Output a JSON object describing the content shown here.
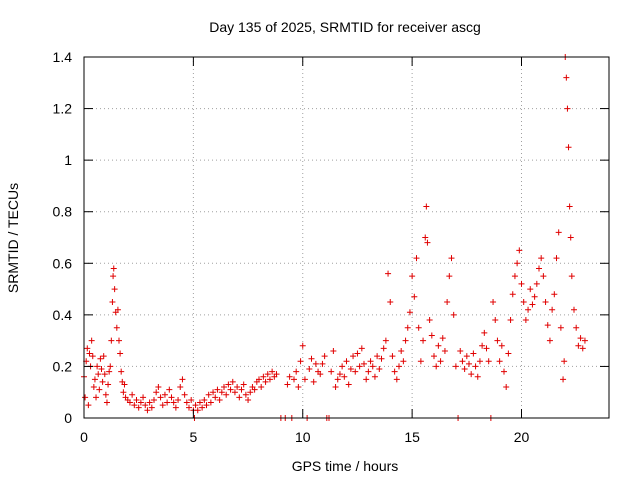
{
  "chart_data": {
    "type": "scatter",
    "title": "Day 135 of 2025, SRMTID for receiver ascg",
    "xlabel": "GPS time / hours",
    "ylabel": "SRMTID / TECUs",
    "xlim": [
      0,
      24
    ],
    "ylim": [
      0,
      1.4
    ],
    "xticks": [
      0,
      5,
      10,
      15,
      20
    ],
    "xtick_labels": [
      "0",
      "5",
      "10",
      "15",
      "20"
    ],
    "yticks": [
      0,
      0.2,
      0.4,
      0.6,
      0.8,
      1.0,
      1.2,
      1.4
    ],
    "ytick_labels": [
      "0",
      "0.2",
      "0.4",
      "0.6",
      "0.8",
      "1",
      "1.2",
      "1.4"
    ],
    "grid": true,
    "marker": "plus",
    "color": "#e00000",
    "series": [
      {
        "name": "SRMTID",
        "points": [
          [
            0.0,
            0.16
          ],
          [
            0.05,
            0.08
          ],
          [
            0.1,
            0.22
          ],
          [
            0.15,
            0.27
          ],
          [
            0.2,
            0.05
          ],
          [
            0.25,
            0.25
          ],
          [
            0.3,
            0.2
          ],
          [
            0.35,
            0.3
          ],
          [
            0.4,
            0.24
          ],
          [
            0.45,
            0.12
          ],
          [
            0.5,
            0.15
          ],
          [
            0.55,
            0.08
          ],
          [
            0.6,
            0.2
          ],
          [
            0.65,
            0.17
          ],
          [
            0.7,
            0.11
          ],
          [
            0.75,
            0.23
          ],
          [
            0.8,
            0.19
          ],
          [
            0.85,
            0.14
          ],
          [
            0.9,
            0.24
          ],
          [
            0.95,
            0.17
          ],
          [
            1.0,
            0.09
          ],
          [
            1.05,
            0.06
          ],
          [
            1.1,
            0.13
          ],
          [
            1.15,
            0.18
          ],
          [
            1.2,
            0.2
          ],
          [
            1.25,
            0.3
          ],
          [
            1.3,
            0.45
          ],
          [
            1.33,
            0.55
          ],
          [
            1.36,
            0.58
          ],
          [
            1.4,
            0.5
          ],
          [
            1.45,
            0.41
          ],
          [
            1.5,
            0.35
          ],
          [
            1.55,
            0.42
          ],
          [
            1.6,
            0.3
          ],
          [
            1.65,
            0.25
          ],
          [
            1.7,
            0.18
          ],
          [
            1.75,
            0.14
          ],
          [
            1.8,
            0.1
          ],
          [
            1.85,
            0.13
          ],
          [
            1.9,
            0.08
          ],
          [
            2.0,
            0.07
          ],
          [
            2.1,
            0.06
          ],
          [
            2.2,
            0.09
          ],
          [
            2.3,
            0.05
          ],
          [
            2.4,
            0.07
          ],
          [
            2.5,
            0.04
          ],
          [
            2.6,
            0.06
          ],
          [
            2.7,
            0.08
          ],
          [
            2.8,
            0.05
          ],
          [
            2.9,
            0.03
          ],
          [
            3.0,
            0.06
          ],
          [
            3.1,
            0.04
          ],
          [
            3.2,
            0.07
          ],
          [
            3.3,
            0.1
          ],
          [
            3.4,
            0.12
          ],
          [
            3.5,
            0.08
          ],
          [
            3.6,
            0.05
          ],
          [
            3.7,
            0.09
          ],
          [
            3.8,
            0.06
          ],
          [
            3.9,
            0.11
          ],
          [
            4.0,
            0.08
          ],
          [
            4.1,
            0.06
          ],
          [
            4.2,
            0.04
          ],
          [
            4.3,
            0.07
          ],
          [
            4.4,
            0.12
          ],
          [
            4.5,
            0.15
          ],
          [
            4.6,
            0.09
          ],
          [
            4.7,
            0.06
          ],
          [
            4.8,
            0.04
          ],
          [
            4.9,
            0.07
          ],
          [
            5.0,
            0.03
          ],
          [
            5.05,
            0.0
          ],
          [
            5.1,
            0.05
          ],
          [
            5.2,
            0.03
          ],
          [
            5.3,
            0.06
          ],
          [
            5.4,
            0.04
          ],
          [
            5.5,
            0.07
          ],
          [
            5.6,
            0.05
          ],
          [
            5.7,
            0.09
          ],
          [
            5.8,
            0.06
          ],
          [
            5.9,
            0.1
          ],
          [
            6.0,
            0.08
          ],
          [
            6.1,
            0.11
          ],
          [
            6.2,
            0.07
          ],
          [
            6.3,
            0.1
          ],
          [
            6.4,
            0.12
          ],
          [
            6.5,
            0.09
          ],
          [
            6.6,
            0.13
          ],
          [
            6.7,
            0.11
          ],
          [
            6.8,
            0.14
          ],
          [
            6.9,
            0.1
          ],
          [
            7.0,
            0.12
          ],
          [
            7.1,
            0.08
          ],
          [
            7.2,
            0.11
          ],
          [
            7.3,
            0.13
          ],
          [
            7.4,
            0.09
          ],
          [
            7.5,
            0.07
          ],
          [
            7.6,
            0.1
          ],
          [
            7.7,
            0.12
          ],
          [
            7.8,
            0.11
          ],
          [
            7.9,
            0.14
          ],
          [
            8.0,
            0.15
          ],
          [
            8.1,
            0.12
          ],
          [
            8.2,
            0.16
          ],
          [
            8.3,
            0.14
          ],
          [
            8.4,
            0.17
          ],
          [
            8.5,
            0.15
          ],
          [
            8.6,
            0.18
          ],
          [
            8.7,
            0.16
          ],
          [
            8.8,
            0.17
          ],
          [
            9.0,
            0.0
          ],
          [
            9.2,
            0.0
          ],
          [
            9.3,
            0.13
          ],
          [
            9.4,
            0.16
          ],
          [
            9.5,
            0.0
          ],
          [
            9.6,
            0.15
          ],
          [
            9.7,
            0.18
          ],
          [
            9.8,
            0.12
          ],
          [
            9.9,
            0.22
          ],
          [
            10.0,
            0.28
          ],
          [
            10.1,
            0.15
          ],
          [
            10.2,
            0.0
          ],
          [
            10.3,
            0.19
          ],
          [
            10.4,
            0.23
          ],
          [
            10.5,
            0.14
          ],
          [
            10.6,
            0.21
          ],
          [
            10.7,
            0.18
          ],
          [
            10.8,
            0.17
          ],
          [
            10.9,
            0.21
          ],
          [
            11.0,
            0.24
          ],
          [
            11.1,
            0.0
          ],
          [
            11.2,
            0.0
          ],
          [
            11.3,
            0.18
          ],
          [
            11.4,
            0.26
          ],
          [
            11.5,
            0.12
          ],
          [
            11.6,
            0.15
          ],
          [
            11.7,
            0.17
          ],
          [
            11.8,
            0.2
          ],
          [
            11.9,
            0.16
          ],
          [
            12.0,
            0.22
          ],
          [
            12.1,
            0.13
          ],
          [
            12.2,
            0.19
          ],
          [
            12.3,
            0.24
          ],
          [
            12.4,
            0.18
          ],
          [
            12.5,
            0.25
          ],
          [
            12.6,
            0.2
          ],
          [
            12.7,
            0.27
          ],
          [
            12.8,
            0.21
          ],
          [
            12.9,
            0.15
          ],
          [
            13.0,
            0.18
          ],
          [
            13.1,
            0.22
          ],
          [
            13.2,
            0.2
          ],
          [
            13.3,
            0.16
          ],
          [
            13.4,
            0.24
          ],
          [
            13.5,
            0.19
          ],
          [
            13.6,
            0.23
          ],
          [
            13.7,
            0.27
          ],
          [
            13.8,
            0.3
          ],
          [
            13.9,
            0.56
          ],
          [
            14.0,
            0.45
          ],
          [
            14.1,
            0.24
          ],
          [
            14.2,
            0.18
          ],
          [
            14.3,
            0.15
          ],
          [
            14.4,
            0.2
          ],
          [
            14.5,
            0.26
          ],
          [
            14.6,
            0.22
          ],
          [
            14.7,
            0.3
          ],
          [
            14.8,
            0.35
          ],
          [
            14.9,
            0.41
          ],
          [
            15.0,
            0.55
          ],
          [
            15.1,
            0.47
          ],
          [
            15.2,
            0.62
          ],
          [
            15.3,
            0.35
          ],
          [
            15.4,
            0.22
          ],
          [
            15.5,
            0.3
          ],
          [
            15.6,
            0.7
          ],
          [
            15.65,
            0.82
          ],
          [
            15.7,
            0.68
          ],
          [
            15.8,
            0.38
          ],
          [
            15.9,
            0.32
          ],
          [
            16.0,
            0.24
          ],
          [
            16.1,
            0.2
          ],
          [
            16.2,
            0.28
          ],
          [
            16.3,
            0.22
          ],
          [
            16.4,
            0.31
          ],
          [
            16.5,
            0.26
          ],
          [
            16.6,
            0.45
          ],
          [
            16.7,
            0.55
          ],
          [
            16.8,
            0.62
          ],
          [
            16.9,
            0.4
          ],
          [
            17.0,
            0.2
          ],
          [
            17.1,
            0.0
          ],
          [
            17.2,
            0.26
          ],
          [
            17.3,
            0.22
          ],
          [
            17.4,
            0.19
          ],
          [
            17.5,
            0.24
          ],
          [
            17.6,
            0.21
          ],
          [
            17.7,
            0.17
          ],
          [
            17.8,
            0.25
          ],
          [
            17.9,
            0.2
          ],
          [
            18.0,
            0.16
          ],
          [
            18.1,
            0.22
          ],
          [
            18.2,
            0.28
          ],
          [
            18.3,
            0.33
          ],
          [
            18.4,
            0.27
          ],
          [
            18.5,
            0.22
          ],
          [
            18.6,
            0.0
          ],
          [
            18.7,
            0.45
          ],
          [
            18.8,
            0.38
          ],
          [
            18.9,
            0.3
          ],
          [
            19.0,
            0.22
          ],
          [
            19.1,
            0.28
          ],
          [
            19.2,
            0.18
          ],
          [
            19.3,
            0.12
          ],
          [
            19.4,
            0.25
          ],
          [
            19.5,
            0.38
          ],
          [
            19.6,
            0.48
          ],
          [
            19.7,
            0.55
          ],
          [
            19.8,
            0.6
          ],
          [
            19.9,
            0.65
          ],
          [
            20.0,
            0.52
          ],
          [
            20.1,
            0.45
          ],
          [
            20.2,
            0.38
          ],
          [
            20.3,
            0.42
          ],
          [
            20.4,
            0.5
          ],
          [
            20.5,
            0.44
          ],
          [
            20.6,
            0.47
          ],
          [
            20.7,
            0.52
          ],
          [
            20.8,
            0.58
          ],
          [
            20.9,
            0.62
          ],
          [
            21.0,
            0.55
          ],
          [
            21.1,
            0.45
          ],
          [
            21.2,
            0.36
          ],
          [
            21.3,
            0.3
          ],
          [
            21.4,
            0.42
          ],
          [
            21.5,
            0.48
          ],
          [
            21.6,
            0.62
          ],
          [
            21.7,
            0.72
          ],
          [
            21.8,
            0.35
          ],
          [
            21.9,
            0.15
          ],
          [
            21.95,
            0.22
          ],
          [
            22.0,
            1.4
          ],
          [
            22.05,
            1.32
          ],
          [
            22.1,
            1.2
          ],
          [
            22.15,
            1.05
          ],
          [
            22.2,
            0.82
          ],
          [
            22.25,
            0.7
          ],
          [
            22.3,
            0.55
          ],
          [
            22.4,
            0.42
          ],
          [
            22.5,
            0.35
          ],
          [
            22.6,
            0.28
          ],
          [
            22.7,
            0.31
          ],
          [
            22.8,
            0.27
          ],
          [
            22.9,
            0.3
          ]
        ]
      }
    ]
  }
}
